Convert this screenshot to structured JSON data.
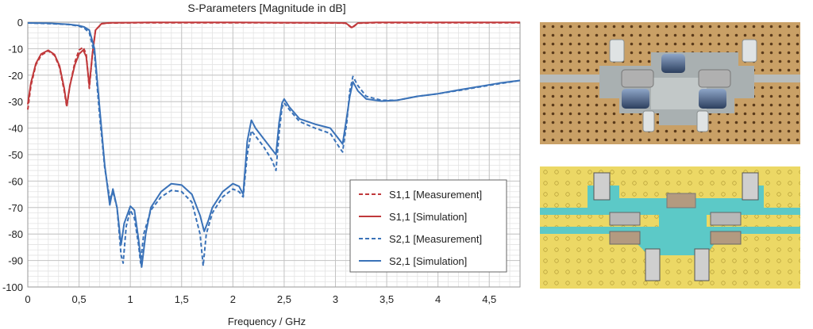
{
  "chart_data": {
    "type": "line",
    "title": "S-Parameters [Magnitude in dB]",
    "xlabel": "Frequency / GHz",
    "ylabel": "",
    "xlim": [
      0,
      4.8
    ],
    "ylim": [
      -100,
      0
    ],
    "xticks": [
      0,
      0.5,
      1,
      1.5,
      2,
      2.5,
      3,
      3.5,
      4,
      4.5
    ],
    "xtick_labels": [
      "0",
      "0,5",
      "1",
      "1,5",
      "2",
      "2,5",
      "3",
      "3,5",
      "4",
      "4,5"
    ],
    "yticks": [
      0,
      -10,
      -20,
      -30,
      -40,
      -50,
      -60,
      -70,
      -80,
      -90,
      -100
    ],
    "ytick_labels": [
      "0",
      "-10",
      "-20",
      "-30",
      "-40",
      "-50",
      "-60",
      "-70",
      "-80",
      "-90",
      "-100"
    ],
    "grid": true,
    "legend_position": "bottom-right",
    "series": [
      {
        "name": "S1,1 [Measurement]",
        "color": "#c0393b",
        "dash": "dashed",
        "points": [
          [
            0,
            -33
          ],
          [
            0.03,
            -24
          ],
          [
            0.08,
            -16
          ],
          [
            0.13,
            -12.5
          ],
          [
            0.2,
            -10.8
          ],
          [
            0.26,
            -12.5
          ],
          [
            0.31,
            -17
          ],
          [
            0.355,
            -26
          ],
          [
            0.38,
            -32
          ],
          [
            0.41,
            -24
          ],
          [
            0.46,
            -15
          ],
          [
            0.5,
            -10.5
          ],
          [
            0.54,
            -9.5
          ],
          [
            0.57,
            -12
          ],
          [
            0.6,
            -25
          ],
          [
            0.63,
            -12
          ],
          [
            0.66,
            -3
          ],
          [
            0.72,
            -0.6
          ],
          [
            0.8,
            -0.3
          ],
          [
            1.2,
            -0.2
          ],
          [
            2.0,
            -0.2
          ],
          [
            3.0,
            -0.3
          ],
          [
            3.1,
            -0.4
          ],
          [
            3.16,
            -2.2
          ],
          [
            3.22,
            -0.4
          ],
          [
            3.4,
            -0.2
          ],
          [
            4.8,
            -0.2
          ]
        ]
      },
      {
        "name": "S1,1 [Simulation]",
        "color": "#c0393b",
        "dash": "solid",
        "points": [
          [
            0,
            -31
          ],
          [
            0.03,
            -23
          ],
          [
            0.08,
            -15.5
          ],
          [
            0.13,
            -12
          ],
          [
            0.2,
            -10.6
          ],
          [
            0.26,
            -12.2
          ],
          [
            0.31,
            -16.5
          ],
          [
            0.355,
            -25
          ],
          [
            0.38,
            -31.5
          ],
          [
            0.41,
            -24
          ],
          [
            0.46,
            -16
          ],
          [
            0.5,
            -12
          ],
          [
            0.54,
            -10.5
          ],
          [
            0.57,
            -13
          ],
          [
            0.6,
            -24
          ],
          [
            0.63,
            -12
          ],
          [
            0.66,
            -3
          ],
          [
            0.72,
            -0.5
          ],
          [
            0.8,
            -0.2
          ],
          [
            1.2,
            -0.1
          ],
          [
            2.0,
            -0.1
          ],
          [
            3.0,
            -0.2
          ],
          [
            3.1,
            -0.3
          ],
          [
            3.16,
            -2
          ],
          [
            3.22,
            -0.3
          ],
          [
            3.4,
            -0.1
          ],
          [
            4.8,
            -0.1
          ]
        ]
      },
      {
        "name": "S2,1 [Measurement]",
        "color": "#3a72b8",
        "dash": "dashed",
        "points": [
          [
            0,
            -0.3
          ],
          [
            0.2,
            -0.5
          ],
          [
            0.4,
            -0.9
          ],
          [
            0.5,
            -1.5
          ],
          [
            0.55,
            -2.2
          ],
          [
            0.6,
            -4
          ],
          [
            0.65,
            -12
          ],
          [
            0.7,
            -35
          ],
          [
            0.75,
            -55
          ],
          [
            0.8,
            -67
          ],
          [
            0.83,
            -64
          ],
          [
            0.87,
            -70
          ],
          [
            0.91,
            -88
          ],
          [
            0.93,
            -91
          ],
          [
            0.96,
            -77
          ],
          [
            1.0,
            -71
          ],
          [
            1.04,
            -74
          ],
          [
            1.08,
            -84
          ],
          [
            1.1,
            -91
          ],
          [
            1.13,
            -80
          ],
          [
            1.2,
            -71
          ],
          [
            1.3,
            -66
          ],
          [
            1.4,
            -63.5
          ],
          [
            1.5,
            -64
          ],
          [
            1.6,
            -68
          ],
          [
            1.68,
            -80
          ],
          [
            1.71,
            -92
          ],
          [
            1.74,
            -80
          ],
          [
            1.8,
            -72
          ],
          [
            1.9,
            -66
          ],
          [
            2.0,
            -63
          ],
          [
            2.06,
            -64
          ],
          [
            2.1,
            -66
          ],
          [
            2.14,
            -50
          ],
          [
            2.18,
            -41
          ],
          [
            2.22,
            -43
          ],
          [
            2.3,
            -47
          ],
          [
            2.38,
            -52
          ],
          [
            2.42,
            -56
          ],
          [
            2.45,
            -42
          ],
          [
            2.48,
            -32
          ],
          [
            2.5,
            -30.5
          ],
          [
            2.55,
            -33
          ],
          [
            2.65,
            -37.5
          ],
          [
            2.8,
            -40
          ],
          [
            2.95,
            -42
          ],
          [
            3.05,
            -48
          ],
          [
            3.07,
            -49
          ],
          [
            3.11,
            -38
          ],
          [
            3.14,
            -26
          ],
          [
            3.17,
            -20.5
          ],
          [
            3.22,
            -24
          ],
          [
            3.3,
            -28
          ],
          [
            3.45,
            -29.5
          ],
          [
            3.6,
            -29.5
          ],
          [
            3.8,
            -28
          ],
          [
            4.0,
            -27
          ],
          [
            4.2,
            -25.8
          ],
          [
            4.4,
            -24.5
          ],
          [
            4.6,
            -23.2
          ],
          [
            4.8,
            -22
          ]
        ]
      },
      {
        "name": "S2,1 [Simulation]",
        "color": "#3a72b8",
        "dash": "solid",
        "points": [
          [
            0,
            -0.3
          ],
          [
            0.2,
            -0.4
          ],
          [
            0.4,
            -0.8
          ],
          [
            0.5,
            -1.3
          ],
          [
            0.55,
            -1.8
          ],
          [
            0.6,
            -3
          ],
          [
            0.65,
            -10
          ],
          [
            0.7,
            -32
          ],
          [
            0.75,
            -54
          ],
          [
            0.8,
            -69
          ],
          [
            0.83,
            -63
          ],
          [
            0.87,
            -70
          ],
          [
            0.91,
            -84
          ],
          [
            0.94,
            -76
          ],
          [
            1.0,
            -69.5
          ],
          [
            1.04,
            -71
          ],
          [
            1.08,
            -82
          ],
          [
            1.11,
            -92.5
          ],
          [
            1.15,
            -80
          ],
          [
            1.2,
            -70
          ],
          [
            1.3,
            -64
          ],
          [
            1.4,
            -61
          ],
          [
            1.5,
            -61.5
          ],
          [
            1.6,
            -65
          ],
          [
            1.68,
            -73
          ],
          [
            1.72,
            -79
          ],
          [
            1.76,
            -75
          ],
          [
            1.8,
            -70
          ],
          [
            1.9,
            -64
          ],
          [
            2.0,
            -61
          ],
          [
            2.06,
            -62
          ],
          [
            2.1,
            -65
          ],
          [
            2.14,
            -45
          ],
          [
            2.18,
            -37
          ],
          [
            2.22,
            -40
          ],
          [
            2.3,
            -44
          ],
          [
            2.38,
            -48
          ],
          [
            2.42,
            -50
          ],
          [
            2.45,
            -38
          ],
          [
            2.48,
            -30.5
          ],
          [
            2.5,
            -29
          ],
          [
            2.55,
            -32
          ],
          [
            2.65,
            -36.5
          ],
          [
            2.8,
            -38.5
          ],
          [
            2.95,
            -40
          ],
          [
            3.05,
            -45
          ],
          [
            3.07,
            -46
          ],
          [
            3.11,
            -36
          ],
          [
            3.14,
            -28
          ],
          [
            3.17,
            -22.5
          ],
          [
            3.22,
            -26
          ],
          [
            3.3,
            -29
          ],
          [
            3.45,
            -29.8
          ],
          [
            3.6,
            -29.5
          ],
          [
            3.8,
            -28
          ],
          [
            4.0,
            -27
          ],
          [
            4.2,
            -25.6
          ],
          [
            4.4,
            -24.3
          ],
          [
            4.6,
            -23
          ],
          [
            4.8,
            -22
          ]
        ]
      }
    ]
  },
  "images": {
    "photo_board_icon": "pcb-photo-icon",
    "layout_render_icon": "pcb-layout-icon"
  }
}
